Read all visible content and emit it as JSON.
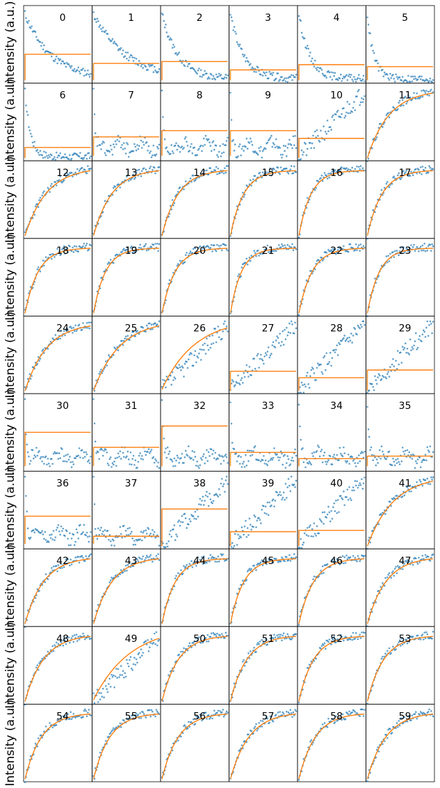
{
  "figure": {
    "y_axis_label": "Intensity (a.u.)",
    "colors": {
      "data": "#1f77b4",
      "fit": "#ff7f0e",
      "frame": "#000000"
    }
  },
  "chart_data": {
    "type": "scatter",
    "grid": false,
    "x_ticks_shown": false,
    "y_ticks_shown": false,
    "rows": 10,
    "cols": 6,
    "panels": [
      {
        "label": "0",
        "shape": "decay",
        "fit": "flat",
        "fit_level": 0.38,
        "k": 2.5
      },
      {
        "label": "1",
        "shape": "decay",
        "fit": "flat",
        "fit_level": 0.24,
        "k": 2.0
      },
      {
        "label": "2",
        "shape": "decay",
        "fit": "flat",
        "fit_level": 0.27,
        "k": 4.0
      },
      {
        "label": "3",
        "shape": "decay",
        "fit": "flat",
        "fit_level": 0.14,
        "k": 5.0
      },
      {
        "label": "4",
        "shape": "decay",
        "fit": "flat",
        "fit_level": 0.22,
        "k": 6.0
      },
      {
        "label": "5",
        "shape": "decay",
        "fit": "flat",
        "fit_level": 0.19,
        "k": 10.0
      },
      {
        "label": "6",
        "shape": "decay",
        "fit": "flat",
        "fit_level": 0.14,
        "k": 12.0
      },
      {
        "label": "7",
        "shape": "spike",
        "fit": "flat",
        "fit_level": 0.28,
        "k": 40.0
      },
      {
        "label": "8",
        "shape": "spike",
        "fit": "flat",
        "fit_level": 0.38,
        "k": 40.0
      },
      {
        "label": "9",
        "shape": "spike",
        "fit": "flat",
        "fit_level": 0.38,
        "k": 40.0
      },
      {
        "label": "10",
        "shape": "linear",
        "fit": "flat",
        "fit_level": 0.28,
        "k": 1.0
      },
      {
        "label": "11",
        "shape": "rise",
        "fit": "curve",
        "fit_level": 0.0,
        "k": 3.0
      },
      {
        "label": "12",
        "shape": "rise",
        "fit": "curve",
        "fit_level": 0.0,
        "k": 3.0
      },
      {
        "label": "13",
        "shape": "rise",
        "fit": "curve",
        "fit_level": 0.0,
        "k": 3.5
      },
      {
        "label": "14",
        "shape": "rise",
        "fit": "curve",
        "fit_level": 0.0,
        "k": 4.0
      },
      {
        "label": "15",
        "shape": "rise",
        "fit": "curve",
        "fit_level": 0.0,
        "k": 5.0
      },
      {
        "label": "16",
        "shape": "rise",
        "fit": "curve",
        "fit_level": 0.0,
        "k": 5.5
      },
      {
        "label": "17",
        "shape": "rise",
        "fit": "curve",
        "fit_level": 0.0,
        "k": 4.5
      },
      {
        "label": "18",
        "shape": "rise",
        "fit": "curve",
        "fit_level": 0.0,
        "k": 5.0
      },
      {
        "label": "19",
        "shape": "rise",
        "fit": "curve",
        "fit_level": 0.0,
        "k": 5.5
      },
      {
        "label": "20",
        "shape": "rise",
        "fit": "curve",
        "fit_level": 0.0,
        "k": 5.0
      },
      {
        "label": "21",
        "shape": "rise",
        "fit": "curve",
        "fit_level": 0.0,
        "k": 6.0
      },
      {
        "label": "22",
        "shape": "rise",
        "fit": "curve",
        "fit_level": 0.0,
        "k": 5.0
      },
      {
        "label": "23",
        "shape": "rise",
        "fit": "curve",
        "fit_level": 0.0,
        "k": 5.5
      },
      {
        "label": "24",
        "shape": "rise",
        "fit": "curve",
        "fit_level": 0.0,
        "k": 3.0
      },
      {
        "label": "25",
        "shape": "rise",
        "fit": "curve",
        "fit_level": 0.0,
        "k": 2.5
      },
      {
        "label": "26",
        "shape": "linear",
        "fit": "curve",
        "fit_level": 0.0,
        "k": 2.0
      },
      {
        "label": "27",
        "shape": "linear",
        "fit": "flat",
        "fit_level": 0.28,
        "k": 1.0
      },
      {
        "label": "28",
        "shape": "linear",
        "fit": "flat",
        "fit_level": 0.18,
        "k": 1.0
      },
      {
        "label": "29",
        "shape": "linear",
        "fit": "flat",
        "fit_level": 0.3,
        "k": 1.0
      },
      {
        "label": "30",
        "shape": "spike",
        "fit": "flat",
        "fit_level": 0.52,
        "k": 40.0
      },
      {
        "label": "31",
        "shape": "spike",
        "fit": "flat",
        "fit_level": 0.28,
        "k": 40.0
      },
      {
        "label": "32",
        "shape": "spike",
        "fit": "flat",
        "fit_level": 0.62,
        "k": 40.0
      },
      {
        "label": "33",
        "shape": "spike",
        "fit": "flat",
        "fit_level": 0.2,
        "k": 30.0
      },
      {
        "label": "34",
        "shape": "spike",
        "fit": "flat",
        "fit_level": 0.1,
        "k": 30.0
      },
      {
        "label": "35",
        "shape": "spike",
        "fit": "flat",
        "fit_level": 0.14,
        "k": 30.0
      },
      {
        "label": "36",
        "shape": "spike",
        "fit": "flat",
        "fit_level": 0.42,
        "k": 30.0
      },
      {
        "label": "37",
        "shape": "spike",
        "fit": "flat",
        "fit_level": 0.1,
        "k": 40.0
      },
      {
        "label": "38",
        "shape": "linear",
        "fit": "flat",
        "fit_level": 0.55,
        "k": 1.0
      },
      {
        "label": "39",
        "shape": "linear",
        "fit": "flat",
        "fit_level": 0.2,
        "k": 1.0
      },
      {
        "label": "40",
        "shape": "linear",
        "fit": "flat",
        "fit_level": 0.22,
        "k": 1.0
      },
      {
        "label": "41",
        "shape": "rise",
        "fit": "curve",
        "fit_level": 0.0,
        "k": 2.5
      },
      {
        "label": "42",
        "shape": "rise",
        "fit": "curve",
        "fit_level": 0.0,
        "k": 3.5
      },
      {
        "label": "43",
        "shape": "rise",
        "fit": "curve",
        "fit_level": 0.0,
        "k": 3.5
      },
      {
        "label": "44",
        "shape": "rise",
        "fit": "curve",
        "fit_level": 0.0,
        "k": 5.0
      },
      {
        "label": "45",
        "shape": "rise",
        "fit": "curve",
        "fit_level": 0.0,
        "k": 5.0
      },
      {
        "label": "46",
        "shape": "rise",
        "fit": "curve",
        "fit_level": 0.0,
        "k": 4.5
      },
      {
        "label": "47",
        "shape": "rise",
        "fit": "curve",
        "fit_level": 0.0,
        "k": 3.5
      },
      {
        "label": "48",
        "shape": "rise",
        "fit": "curve",
        "fit_level": 0.0,
        "k": 3.5
      },
      {
        "label": "49",
        "shape": "linear",
        "fit": "curve",
        "fit_level": 0.0,
        "k": 1.8
      },
      {
        "label": "50",
        "shape": "rise",
        "fit": "curve",
        "fit_level": 0.0,
        "k": 4.0
      },
      {
        "label": "51",
        "shape": "rise",
        "fit": "curve",
        "fit_level": 0.0,
        "k": 4.0
      },
      {
        "label": "52",
        "shape": "rise",
        "fit": "curve",
        "fit_level": 0.0,
        "k": 4.5
      },
      {
        "label": "53",
        "shape": "rise",
        "fit": "curve",
        "fit_level": 0.0,
        "k": 4.0
      },
      {
        "label": "54",
        "shape": "rise",
        "fit": "curve",
        "fit_level": 0.0,
        "k": 4.0
      },
      {
        "label": "55",
        "shape": "rise",
        "fit": "curve",
        "fit_level": 0.0,
        "k": 4.0
      },
      {
        "label": "56",
        "shape": "rise",
        "fit": "curve",
        "fit_level": 0.0,
        "k": 4.0
      },
      {
        "label": "57",
        "shape": "rise",
        "fit": "curve",
        "fit_level": 0.0,
        "k": 3.5
      },
      {
        "label": "58",
        "shape": "rise",
        "fit": "curve",
        "fit_level": 0.0,
        "k": 4.0
      },
      {
        "label": "59",
        "shape": "rise",
        "fit": "curve",
        "fit_level": 0.0,
        "k": 3.5
      }
    ]
  }
}
